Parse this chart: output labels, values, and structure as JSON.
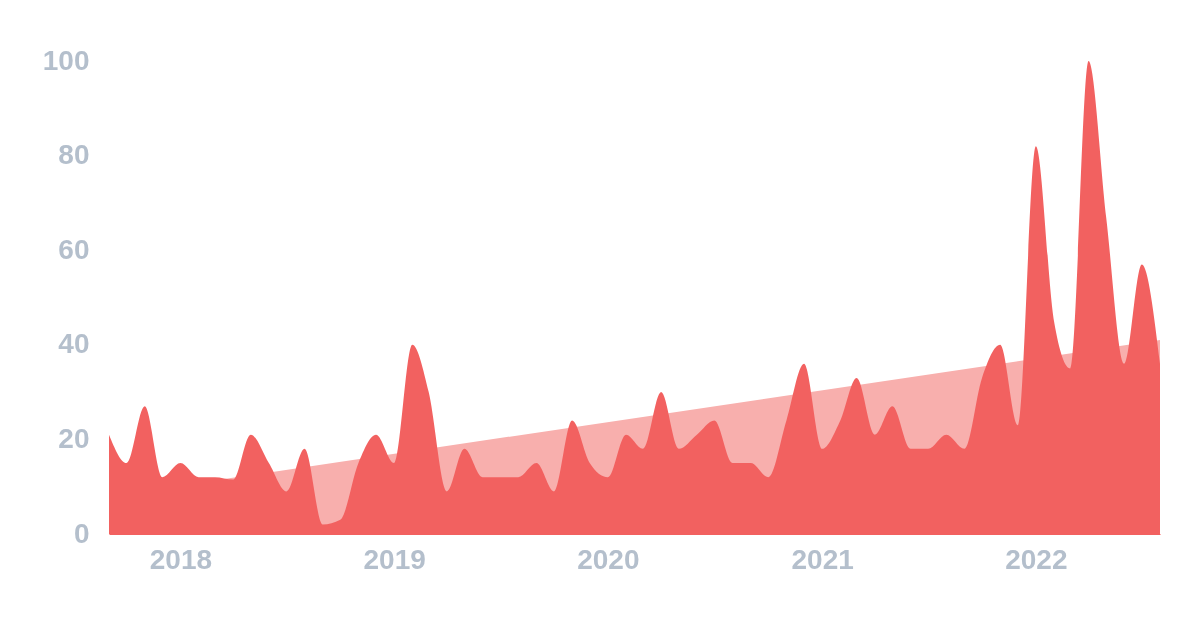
{
  "chart_data": {
    "type": "area",
    "x": [
      "2017-09",
      "2017-10",
      "2017-11",
      "2017-12",
      "2018-01",
      "2018-02",
      "2018-03",
      "2018-04",
      "2018-05",
      "2018-06",
      "2018-07",
      "2018-08",
      "2018-09",
      "2018-10",
      "2018-11",
      "2018-12",
      "2019-01",
      "2019-02",
      "2019-03",
      "2019-04",
      "2019-05",
      "2019-06",
      "2019-07",
      "2019-08",
      "2019-09",
      "2019-10",
      "2019-11",
      "2019-12",
      "2020-01",
      "2020-02",
      "2020-03",
      "2020-04",
      "2020-05",
      "2020-06",
      "2020-07",
      "2020-08",
      "2020-09",
      "2020-10",
      "2020-11",
      "2020-12",
      "2021-01",
      "2021-02",
      "2021-03",
      "2021-04",
      "2021-05",
      "2021-06",
      "2021-07",
      "2021-08",
      "2021-09",
      "2021-10",
      "2021-11",
      "2021-12",
      "2022-01",
      "2022-02",
      "2022-03",
      "2022-04",
      "2022-05",
      "2022-06",
      "2022-07",
      "2022-08"
    ],
    "series": [
      {
        "color": "#f8afad",
        "x": [
          "2017-09",
          "2022-08"
        ],
        "values": [
          8,
          41
        ]
      },
      {
        "color": "#f26160",
        "values": [
          21,
          15,
          27,
          12,
          15,
          12,
          12,
          11.5,
          21,
          15,
          9,
          18,
          2,
          3,
          15,
          21,
          15,
          40,
          30,
          9,
          18,
          12,
          12,
          12,
          15,
          9,
          24,
          15,
          12,
          21,
          18,
          30,
          18,
          21,
          24,
          15,
          15,
          12,
          24,
          36,
          18,
          24,
          33,
          21,
          27,
          18,
          18,
          21,
          18,
          33,
          40,
          23,
          82,
          45,
          35,
          100,
          67,
          36,
          57,
          36
        ]
      }
    ],
    "xlim": [
      "2017-09",
      "2022-08"
    ],
    "xticks": [
      {
        "value": "2018",
        "label": "2018"
      },
      {
        "value": "2019",
        "label": "2019"
      },
      {
        "value": "2020",
        "label": "2020"
      },
      {
        "value": "2021",
        "label": "2021"
      },
      {
        "value": "2022",
        "label": "2022"
      }
    ],
    "ylim": [
      0,
      100
    ],
    "yticks": [
      0,
      20,
      40,
      60,
      80,
      100
    ],
    "grid": false
  }
}
